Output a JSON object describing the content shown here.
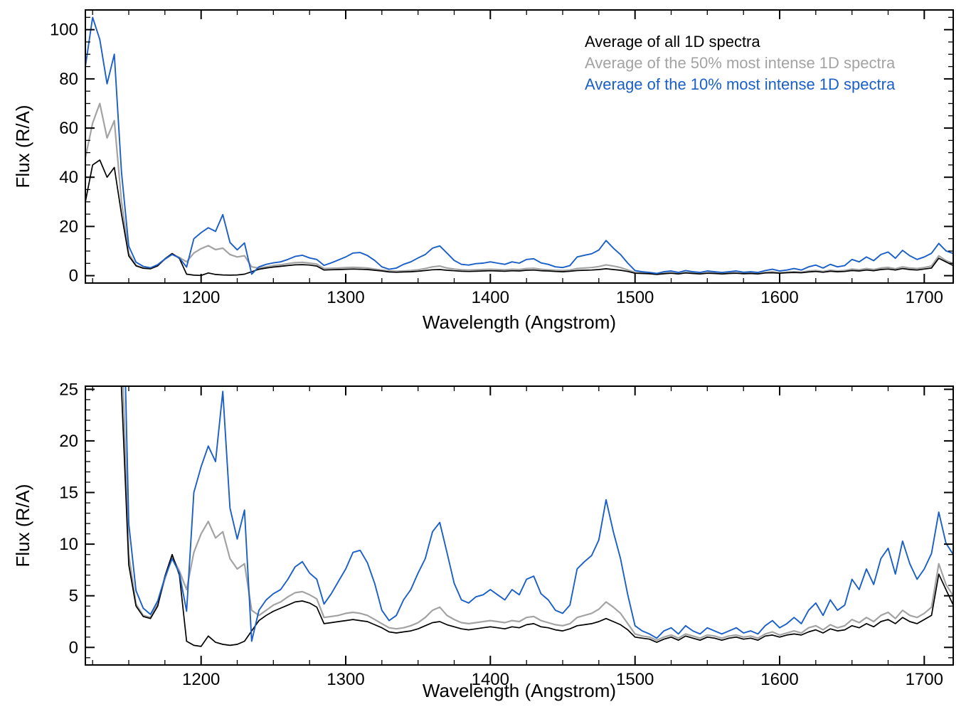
{
  "chart_data": {
    "type": "line",
    "title": "",
    "xlabel": "Wavelength (Angstrom)",
    "ylabel": "Flux (R/A)",
    "xlim": [
      1120,
      1720
    ],
    "xticks": [
      1200,
      1300,
      1400,
      1500,
      1600,
      1700
    ],
    "x_minor_step": 25,
    "x_start": 1120,
    "x_step": 5,
    "grid": "off",
    "legend_position": "top-right-inside-first-panel",
    "panels": [
      {
        "name": "full-range",
        "ylim": [
          -3,
          108
        ],
        "yticks": [
          0,
          20,
          40,
          60,
          80,
          100
        ],
        "y_minor_step": 5
      },
      {
        "name": "zoomed",
        "ylim": [
          -1.7,
          25.3
        ],
        "yticks": [
          0,
          5,
          10,
          15,
          20,
          25
        ],
        "y_minor_step": 1
      }
    ],
    "series": [
      {
        "name": "Average of all 1D spectra",
        "color": "#000000",
        "values": [
          30,
          45,
          47,
          40,
          44,
          25,
          8,
          4.0,
          3.0,
          2.8,
          4.0,
          6.9,
          9.0,
          7.0,
          0.6,
          0.2,
          0.1,
          1.1,
          0.5,
          0.3,
          0.2,
          0.3,
          0.6,
          1.6,
          2.6,
          3.1,
          3.5,
          3.8,
          4.1,
          4.4,
          4.5,
          4.3,
          3.9,
          2.3,
          2.4,
          2.5,
          2.6,
          2.7,
          2.6,
          2.5,
          2.2,
          1.9,
          1.5,
          1.4,
          1.5,
          1.6,
          1.8,
          2.1,
          2.4,
          2.5,
          2.2,
          2.0,
          1.8,
          1.7,
          1.8,
          1.9,
          2.0,
          1.9,
          1.8,
          2.0,
          1.9,
          2.2,
          2.3,
          2.0,
          1.9,
          1.7,
          1.6,
          1.8,
          2.1,
          2.2,
          2.3,
          2.5,
          2.8,
          2.5,
          2.2,
          1.7,
          1.0,
          0.9,
          0.8,
          0.5,
          0.8,
          1.0,
          0.7,
          1.1,
          0.9,
          0.7,
          1.0,
          0.9,
          0.7,
          0.9,
          1.0,
          0.8,
          0.9,
          0.7,
          1.1,
          1.2,
          1.0,
          1.2,
          1.3,
          1.2,
          1.5,
          1.7,
          1.4,
          1.8,
          1.6,
          1.7,
          2.1,
          1.9,
          2.3,
          2.0,
          2.5,
          2.7,
          2.3,
          2.9,
          2.5,
          2.3,
          2.7,
          3.1,
          7.1,
          5.6,
          4.1
        ]
      },
      {
        "name": "Average of the 50% most intense 1D spectra",
        "color": "#a3a3a3",
        "values": [
          48,
          62,
          70,
          56,
          63,
          30,
          9,
          4.2,
          3.1,
          2.9,
          4.2,
          6.6,
          8.8,
          7.4,
          5.6,
          9.2,
          11.0,
          12.2,
          10.6,
          11.2,
          8.6,
          7.6,
          8.1,
          3.6,
          3.1,
          3.6,
          4.1,
          4.4,
          4.9,
          5.3,
          5.4,
          5.1,
          4.7,
          2.9,
          3.0,
          3.1,
          3.3,
          3.4,
          3.3,
          3.1,
          2.7,
          2.3,
          1.9,
          1.8,
          1.9,
          2.1,
          2.4,
          2.9,
          3.6,
          3.9,
          3.1,
          2.7,
          2.4,
          2.3,
          2.4,
          2.5,
          2.6,
          2.5,
          2.4,
          2.6,
          2.5,
          2.9,
          3.0,
          2.6,
          2.4,
          2.2,
          2.1,
          2.3,
          2.9,
          3.1,
          3.3,
          3.7,
          4.4,
          3.9,
          3.3,
          2.3,
          1.3,
          1.1,
          1.0,
          0.7,
          1.0,
          1.2,
          0.9,
          1.3,
          1.1,
          0.9,
          1.2,
          1.1,
          0.9,
          1.1,
          1.2,
          1.0,
          1.1,
          0.9,
          1.3,
          1.5,
          1.2,
          1.4,
          1.6,
          1.4,
          1.9,
          2.1,
          1.7,
          2.2,
          1.9,
          2.1,
          2.7,
          2.4,
          2.9,
          2.5,
          3.1,
          3.4,
          2.8,
          3.6,
          3.1,
          2.9,
          3.3,
          3.9,
          8.1,
          6.1,
          5.0
        ]
      },
      {
        "name": "Average of the 10% most intense 1D spectra",
        "color": "#1a5fc8",
        "values": [
          85,
          105,
          96,
          78,
          90,
          42,
          12,
          5.5,
          3.8,
          3.2,
          4.5,
          6.8,
          8.6,
          7.2,
          3.5,
          15,
          17.5,
          19.5,
          18,
          24.8,
          13.5,
          10.5,
          13.3,
          0.6,
          3.6,
          4.6,
          5.2,
          5.6,
          6.6,
          7.8,
          8.3,
          7.2,
          6.6,
          4.2,
          5.2,
          6.4,
          7.6,
          9.2,
          9.4,
          8.2,
          6.2,
          3.6,
          2.6,
          3.1,
          4.6,
          5.6,
          7.2,
          8.6,
          11.2,
          12.1,
          9.2,
          6.2,
          4.6,
          4.3,
          4.9,
          5.1,
          5.6,
          5.1,
          4.6,
          5.6,
          5.1,
          6.6,
          6.9,
          5.2,
          4.6,
          3.6,
          3.3,
          4.1,
          7.6,
          8.3,
          8.9,
          10.4,
          14.3,
          11.2,
          8.6,
          5.1,
          2.1,
          1.6,
          1.3,
          0.9,
          1.6,
          1.9,
          1.3,
          2.1,
          1.6,
          1.3,
          1.9,
          1.6,
          1.3,
          1.6,
          1.9,
          1.4,
          1.6,
          1.3,
          2.1,
          2.6,
          1.9,
          2.3,
          2.9,
          2.3,
          3.6,
          4.3,
          3.1,
          4.6,
          3.6,
          4.1,
          6.6,
          5.6,
          7.6,
          6.1,
          8.6,
          9.6,
          7.1,
          10.3,
          8.1,
          6.6,
          7.6,
          9.1,
          13.1,
          10.1,
          9.0
        ]
      }
    ]
  }
}
